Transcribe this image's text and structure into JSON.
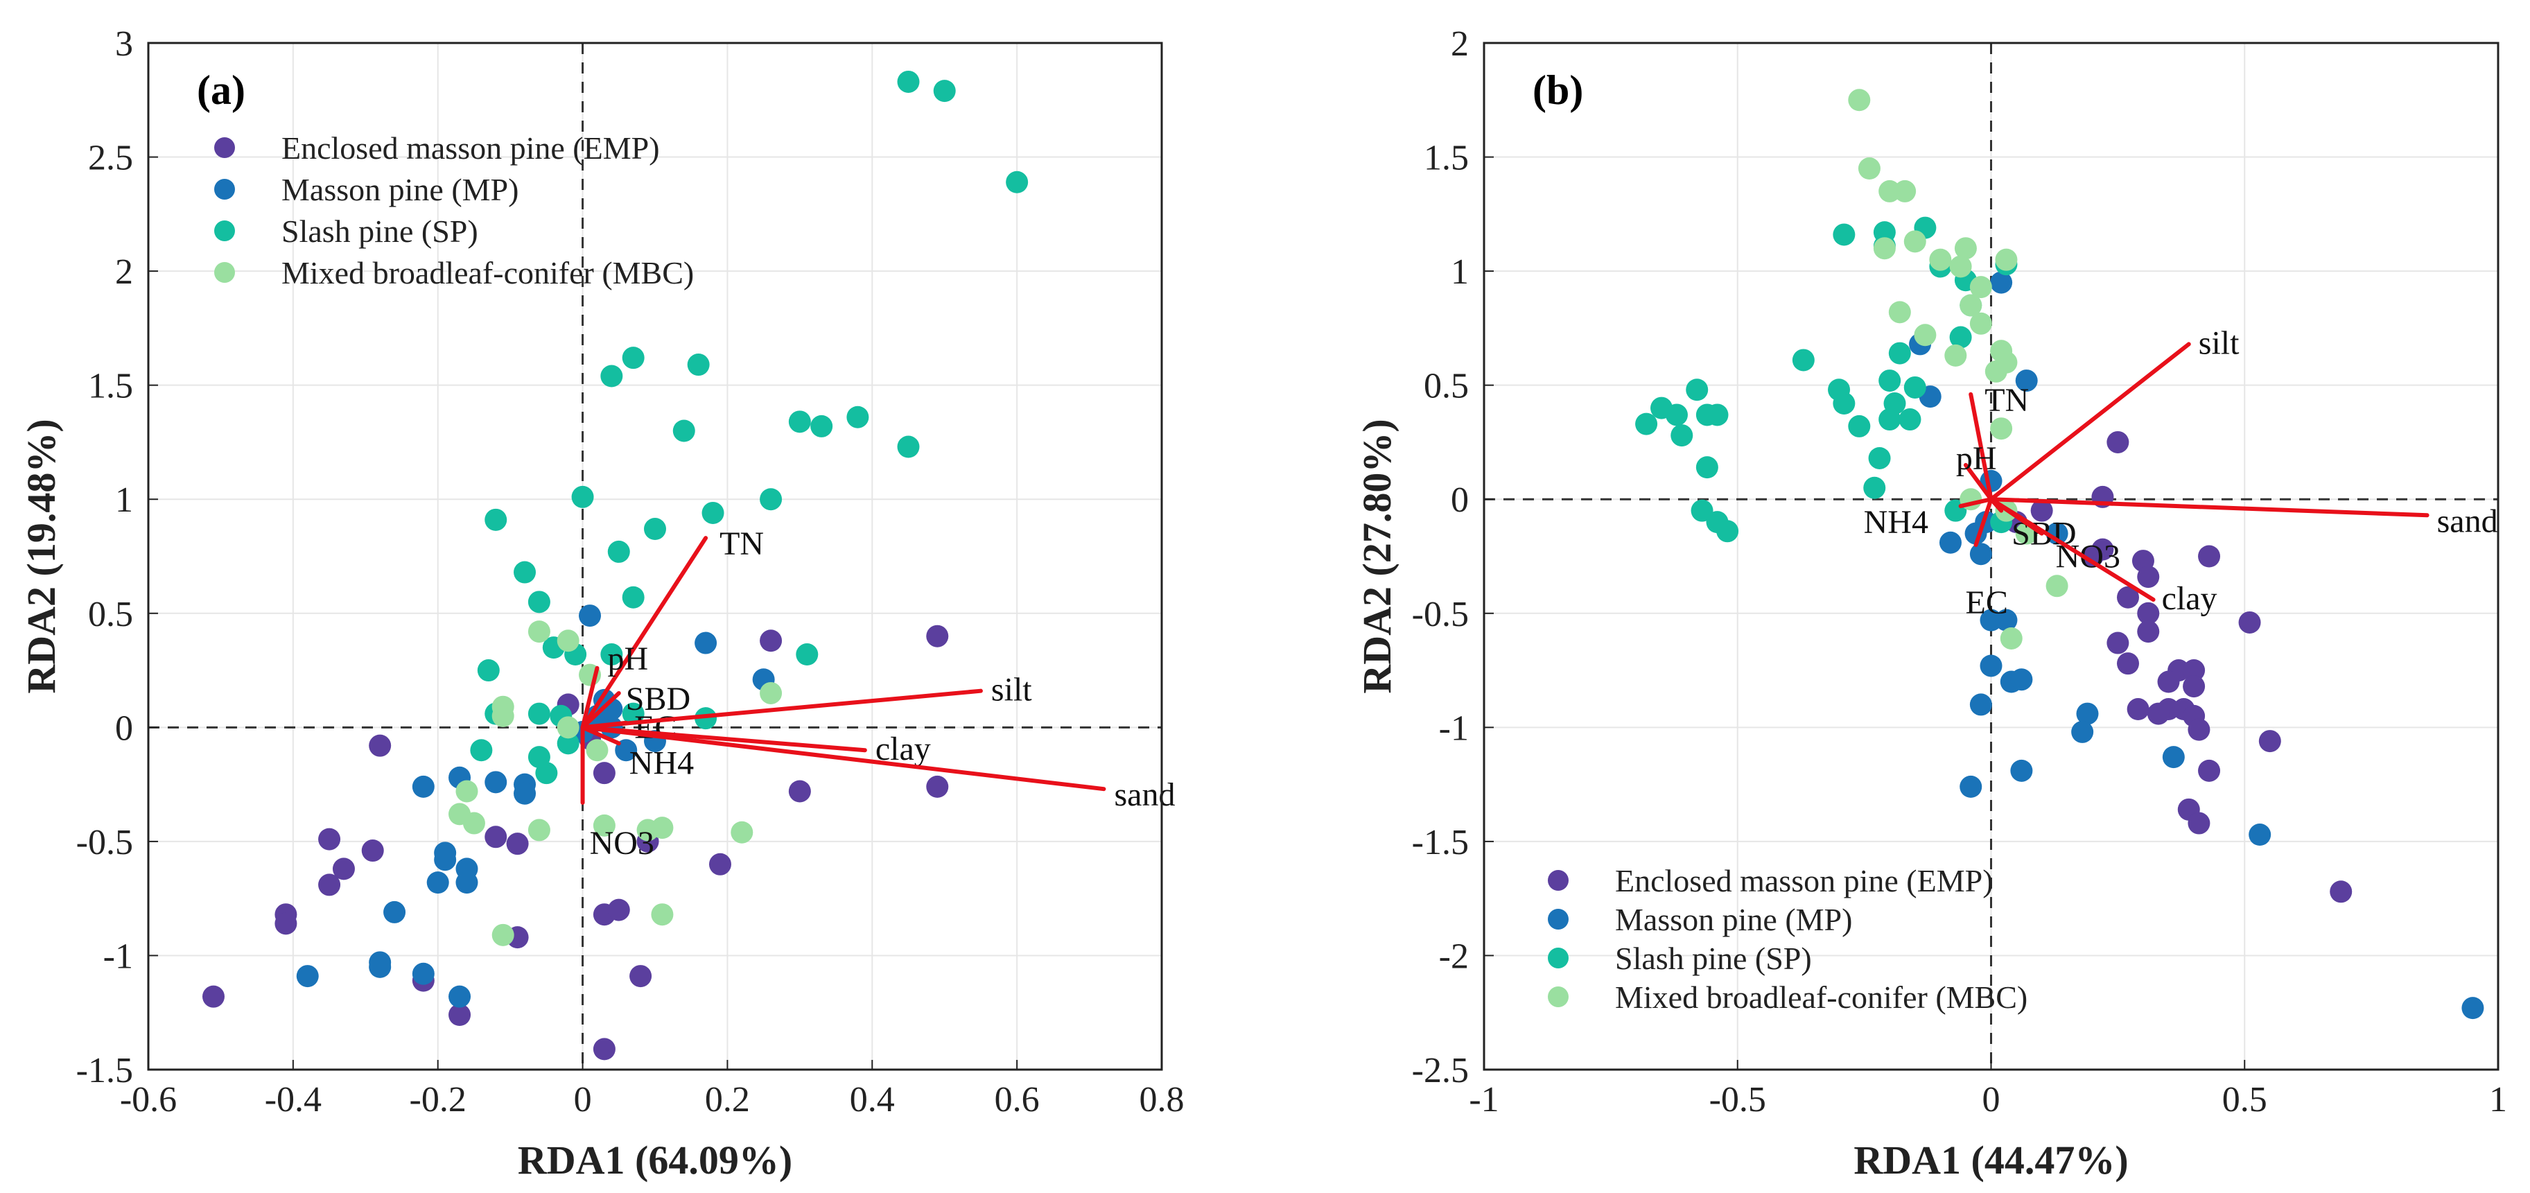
{
  "chart_data": [
    {
      "id": "a",
      "type": "scatter",
      "panel_label": "(a)",
      "xlabel": "RDA1 (64.09%)",
      "ylabel": "RDA2 (19.48%)",
      "xlim": [
        -0.6,
        0.8
      ],
      "ylim": [
        -1.5,
        3
      ],
      "xticks": [
        -0.6,
        -0.4,
        -0.2,
        0,
        0.2,
        0.4,
        0.6,
        0.8
      ],
      "xtick_labels": [
        "-0.6",
        "-0.4",
        "-0.2",
        "0",
        "0.2",
        "0.4",
        "0.6",
        "0.8"
      ],
      "yticks": [
        -1.5,
        -1,
        -0.5,
        0,
        0.5,
        1,
        1.5,
        2,
        2.5,
        3
      ],
      "ytick_labels": [
        "-1.5",
        "-1",
        "-0.5",
        "0",
        "0.5",
        "1",
        "1.5",
        "2",
        "2.5",
        "3"
      ],
      "grid": true,
      "legend_position": "top-left",
      "arrows": [
        {
          "label": "TN",
          "x": 0.17,
          "y": 0.83
        },
        {
          "label": "pH",
          "x": 0.02,
          "y": 0.26
        },
        {
          "label": "SBD",
          "x": 0.05,
          "y": 0.15
        },
        {
          "label": "EC",
          "x": 0.06,
          "y": 0.02
        },
        {
          "label": "NH4",
          "x": 0.05,
          "y": -0.07
        },
        {
          "label": "NO3",
          "x": 0.0,
          "y": -0.33
        },
        {
          "label": "silt",
          "x": 0.55,
          "y": 0.16
        },
        {
          "label": "clay",
          "x": 0.39,
          "y": -0.1
        },
        {
          "label": "sand",
          "x": 0.72,
          "y": -0.27
        }
      ],
      "series": [
        {
          "name": "Enclosed masson pine (EMP)",
          "color": "#5B3F9E",
          "points": [
            [
              -0.51,
              -1.18
            ],
            [
              -0.41,
              -0.82
            ],
            [
              -0.41,
              -0.86
            ],
            [
              -0.35,
              -0.49
            ],
            [
              -0.35,
              -0.69
            ],
            [
              -0.33,
              -0.62
            ],
            [
              -0.29,
              -0.54
            ],
            [
              -0.28,
              -0.08
            ],
            [
              -0.22,
              -1.11
            ],
            [
              -0.17,
              -1.26
            ],
            [
              -0.12,
              -0.48
            ],
            [
              -0.09,
              -0.51
            ],
            [
              -0.09,
              -0.92
            ],
            [
              0.03,
              -1.41
            ],
            [
              0.03,
              -0.82
            ],
            [
              0.05,
              -0.8
            ],
            [
              0.03,
              -0.2
            ],
            [
              0.08,
              -1.09
            ],
            [
              0.09,
              -0.5
            ],
            [
              0.19,
              -0.6
            ],
            [
              0.26,
              0.38
            ],
            [
              0.3,
              -0.28
            ],
            [
              0.49,
              0.4
            ],
            [
              0.49,
              -0.26
            ],
            [
              0.01,
              -0.05
            ],
            [
              -0.02,
              0.1
            ]
          ]
        },
        {
          "name": "Masson pine (MP)",
          "color": "#1A73B8",
          "points": [
            [
              -0.38,
              -1.09
            ],
            [
              -0.28,
              -1.03
            ],
            [
              -0.28,
              -1.05
            ],
            [
              -0.26,
              -0.81
            ],
            [
              -0.22,
              -1.08
            ],
            [
              -0.22,
              -0.26
            ],
            [
              -0.2,
              -0.68
            ],
            [
              -0.19,
              -0.55
            ],
            [
              -0.19,
              -0.58
            ],
            [
              -0.17,
              -0.22
            ],
            [
              -0.16,
              -0.62
            ],
            [
              -0.16,
              -0.68
            ],
            [
              -0.17,
              -1.18
            ],
            [
              -0.12,
              -0.24
            ],
            [
              -0.08,
              -0.25
            ],
            [
              -0.08,
              -0.29
            ],
            [
              0.01,
              0.49
            ],
            [
              0.02,
              0.05
            ],
            [
              0.03,
              0.12
            ],
            [
              0.04,
              0.0
            ],
            [
              0.06,
              -0.1
            ],
            [
              0.1,
              -0.06
            ],
            [
              0.17,
              0.37
            ],
            [
              0.25,
              0.21
            ],
            [
              0.0,
              -0.02
            ],
            [
              0.04,
              0.08
            ]
          ]
        },
        {
          "name": "Slash pine (SP)",
          "color": "#14BEA0",
          "points": [
            [
              0.45,
              2.83
            ],
            [
              0.5,
              2.79
            ],
            [
              0.6,
              2.39
            ],
            [
              0.07,
              1.62
            ],
            [
              0.04,
              1.54
            ],
            [
              0.16,
              1.59
            ],
            [
              0.14,
              1.3
            ],
            [
              0.3,
              1.34
            ],
            [
              0.33,
              1.32
            ],
            [
              0.38,
              1.36
            ],
            [
              0.45,
              1.23
            ],
            [
              0.0,
              1.01
            ],
            [
              0.26,
              1.0
            ],
            [
              0.18,
              0.94
            ],
            [
              0.1,
              0.87
            ],
            [
              -0.12,
              0.91
            ],
            [
              0.05,
              0.77
            ],
            [
              -0.08,
              0.68
            ],
            [
              0.07,
              0.57
            ],
            [
              -0.06,
              0.55
            ],
            [
              -0.04,
              0.35
            ],
            [
              -0.01,
              0.32
            ],
            [
              0.04,
              0.32
            ],
            [
              0.31,
              0.32
            ],
            [
              -0.13,
              0.25
            ],
            [
              -0.12,
              0.06
            ],
            [
              -0.06,
              0.06
            ],
            [
              -0.03,
              0.05
            ],
            [
              0.07,
              0.06
            ],
            [
              0.17,
              0.04
            ],
            [
              -0.14,
              -0.1
            ],
            [
              -0.06,
              -0.13
            ],
            [
              -0.02,
              -0.07
            ],
            [
              -0.05,
              -0.2
            ]
          ]
        },
        {
          "name": "Mixed broadleaf-conifer (MBC)",
          "color": "#9ADFA0",
          "points": [
            [
              -0.06,
              0.42
            ],
            [
              -0.02,
              0.38
            ],
            [
              -0.11,
              0.09
            ],
            [
              -0.11,
              0.05
            ],
            [
              0.01,
              0.23
            ],
            [
              0.26,
              0.15
            ],
            [
              -0.02,
              0.0
            ],
            [
              0.02,
              -0.1
            ],
            [
              -0.16,
              -0.28
            ],
            [
              -0.17,
              -0.38
            ],
            [
              -0.15,
              -0.42
            ],
            [
              -0.06,
              -0.45
            ],
            [
              0.03,
              -0.43
            ],
            [
              0.09,
              -0.45
            ],
            [
              0.11,
              -0.44
            ],
            [
              0.22,
              -0.46
            ],
            [
              -0.11,
              -0.91
            ],
            [
              0.11,
              -0.82
            ]
          ]
        }
      ]
    },
    {
      "id": "b",
      "type": "scatter",
      "panel_label": "(b)",
      "xlabel": "RDA1 (44.47%)",
      "ylabel": "RDA2 (27.80%)",
      "xlim": [
        -1,
        1
      ],
      "ylim": [
        -2.5,
        2
      ],
      "xticks": [
        -1,
        -0.5,
        0,
        0.5,
        1
      ],
      "xtick_labels": [
        "-1",
        "-0.5",
        "0",
        "0.5",
        "1"
      ],
      "yticks": [
        -2.5,
        -2,
        -1.5,
        -1,
        -0.5,
        0,
        0.5,
        1,
        1.5,
        2
      ],
      "ytick_labels": [
        "-2.5",
        "-2",
        "-1.5",
        "-1",
        "-0.5",
        "0",
        "0.5",
        "1",
        "1.5",
        "2"
      ],
      "grid": true,
      "legend_position": "bottom-left",
      "arrows": [
        {
          "label": "silt",
          "x": 0.39,
          "y": 0.68
        },
        {
          "label": "TN",
          "x": -0.04,
          "y": 0.46
        },
        {
          "label": "pH",
          "x": -0.05,
          "y": 0.15
        },
        {
          "label": "NH4",
          "x": -0.06,
          "y": -0.03
        },
        {
          "label": "SBD",
          "x": 0.02,
          "y": -0.05
        },
        {
          "label": "EC",
          "x": -0.03,
          "y": -0.2
        },
        {
          "label": "NO3",
          "x": 0.1,
          "y": -0.15
        },
        {
          "label": "clay",
          "x": 0.32,
          "y": -0.44
        },
        {
          "label": "sand",
          "x": 0.86,
          "y": -0.07
        }
      ],
      "series": [
        {
          "name": "Enclosed masson pine (EMP)",
          "color": "#5B3F9E",
          "points": [
            [
              0.25,
              0.25
            ],
            [
              0.22,
              0.01
            ],
            [
              0.43,
              -0.25
            ],
            [
              0.2,
              -0.25
            ],
            [
              0.22,
              -0.22
            ],
            [
              0.3,
              -0.27
            ],
            [
              0.31,
              -0.34
            ],
            [
              0.27,
              -0.43
            ],
            [
              0.31,
              -0.5
            ],
            [
              0.31,
              -0.58
            ],
            [
              0.25,
              -0.63
            ],
            [
              0.27,
              -0.72
            ],
            [
              0.37,
              -0.75
            ],
            [
              0.35,
              -0.8
            ],
            [
              0.4,
              -0.75
            ],
            [
              0.4,
              -0.82
            ],
            [
              0.35,
              -0.92
            ],
            [
              0.38,
              -0.92
            ],
            [
              0.4,
              -0.95
            ],
            [
              0.41,
              -1.01
            ],
            [
              0.33,
              -0.94
            ],
            [
              0.29,
              -0.92
            ],
            [
              0.43,
              -1.19
            ],
            [
              0.55,
              -1.06
            ],
            [
              0.51,
              -0.54
            ],
            [
              0.39,
              -1.36
            ],
            [
              0.41,
              -1.42
            ],
            [
              0.69,
              -1.72
            ],
            [
              0.05,
              -0.1
            ],
            [
              0.1,
              -0.05
            ]
          ]
        },
        {
          "name": "Masson pine (MP)",
          "color": "#1A73B8",
          "points": [
            [
              -0.14,
              0.68
            ],
            [
              -0.12,
              0.45
            ],
            [
              0.07,
              0.52
            ],
            [
              0.02,
              0.95
            ],
            [
              0.0,
              0.08
            ],
            [
              -0.01,
              -0.1
            ],
            [
              -0.08,
              -0.19
            ],
            [
              -0.03,
              -0.15
            ],
            [
              -0.02,
              -0.24
            ],
            [
              0.0,
              -0.53
            ],
            [
              0.03,
              -0.53
            ],
            [
              0.0,
              -0.73
            ],
            [
              0.04,
              -0.8
            ],
            [
              0.06,
              -0.79
            ],
            [
              -0.02,
              -0.9
            ],
            [
              0.19,
              -0.94
            ],
            [
              0.18,
              -1.02
            ],
            [
              0.36,
              -1.13
            ],
            [
              0.06,
              -1.19
            ],
            [
              -0.04,
              -1.26
            ],
            [
              0.53,
              -1.47
            ],
            [
              0.95,
              -2.23
            ],
            [
              0.13,
              -0.15
            ]
          ]
        },
        {
          "name": "Slash pine (SP)",
          "color": "#14BEA0",
          "points": [
            [
              -0.21,
              1.17
            ],
            [
              -0.13,
              1.19
            ],
            [
              -0.21,
              1.11
            ],
            [
              -0.29,
              1.16
            ],
            [
              -0.1,
              1.02
            ],
            [
              -0.05,
              0.96
            ],
            [
              0.03,
              1.03
            ],
            [
              -0.04,
              0.85
            ],
            [
              -0.06,
              0.71
            ],
            [
              -0.37,
              0.61
            ],
            [
              -0.18,
              0.64
            ],
            [
              -0.3,
              0.48
            ],
            [
              -0.29,
              0.42
            ],
            [
              -0.2,
              0.52
            ],
            [
              -0.15,
              0.49
            ],
            [
              -0.26,
              0.32
            ],
            [
              -0.19,
              0.42
            ],
            [
              -0.2,
              0.35
            ],
            [
              -0.16,
              0.35
            ],
            [
              -0.22,
              0.18
            ],
            [
              -0.23,
              0.05
            ],
            [
              -0.68,
              0.33
            ],
            [
              -0.65,
              0.4
            ],
            [
              -0.62,
              0.37
            ],
            [
              -0.58,
              0.48
            ],
            [
              -0.56,
              0.37
            ],
            [
              -0.54,
              0.37
            ],
            [
              -0.61,
              0.28
            ],
            [
              -0.56,
              0.14
            ],
            [
              -0.57,
              -0.05
            ],
            [
              -0.54,
              -0.1
            ],
            [
              -0.52,
              -0.14
            ],
            [
              -0.07,
              -0.05
            ],
            [
              0.02,
              -0.1
            ]
          ]
        },
        {
          "name": "Mixed broadleaf-conifer (MBC)",
          "color": "#9ADFA0",
          "points": [
            [
              -0.26,
              1.75
            ],
            [
              -0.24,
              1.45
            ],
            [
              -0.2,
              1.35
            ],
            [
              -0.17,
              1.35
            ],
            [
              -0.21,
              1.1
            ],
            [
              -0.15,
              1.13
            ],
            [
              -0.05,
              1.1
            ],
            [
              -0.1,
              1.05
            ],
            [
              0.03,
              1.05
            ],
            [
              -0.06,
              1.02
            ],
            [
              -0.02,
              0.93
            ],
            [
              -0.18,
              0.82
            ],
            [
              -0.13,
              0.72
            ],
            [
              -0.02,
              0.77
            ],
            [
              -0.04,
              0.85
            ],
            [
              -0.07,
              0.63
            ],
            [
              0.02,
              0.65
            ],
            [
              0.03,
              0.6
            ],
            [
              0.01,
              0.56
            ],
            [
              0.02,
              0.31
            ],
            [
              -0.04,
              0.0
            ],
            [
              0.03,
              -0.05
            ],
            [
              0.07,
              -0.15
            ],
            [
              0.13,
              -0.38
            ],
            [
              0.04,
              -0.61
            ]
          ]
        }
      ]
    }
  ]
}
